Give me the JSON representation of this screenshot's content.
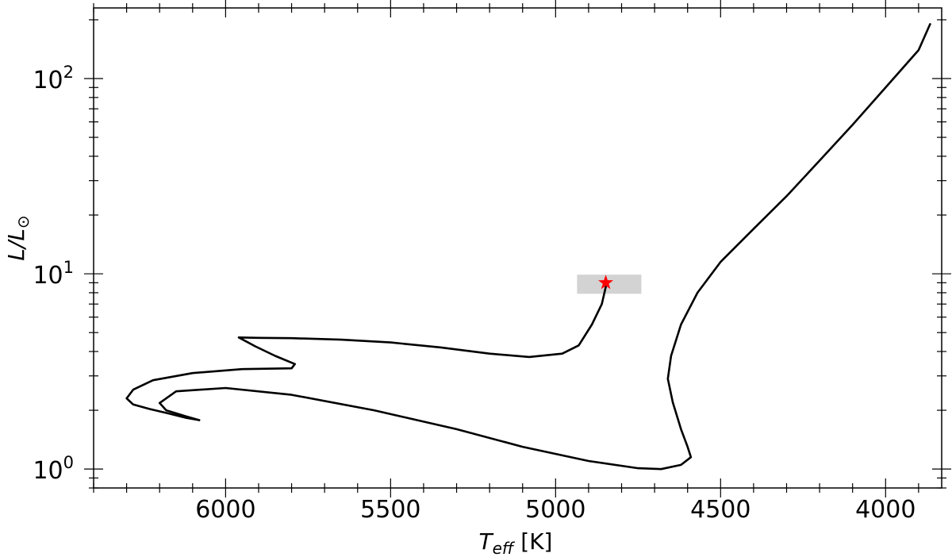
{
  "chart_data": {
    "type": "line",
    "xlabel": {
      "main": "T",
      "sub": "eff",
      "unit": " [K]"
    },
    "ylabel": {
      "main": "L/L",
      "sub": "⊙"
    },
    "x_axis": {
      "min": 3830,
      "max": 6400,
      "reversed": true,
      "major_ticks": [
        6000,
        5500,
        5000,
        4500,
        4000
      ],
      "major_labels": [
        "6000",
        "5500",
        "5000",
        "4500",
        "4000"
      ],
      "minor_step": 100
    },
    "y_axis": {
      "scale": "log",
      "min": 0.8,
      "max": 230,
      "major_ticks": [
        1,
        10,
        100
      ],
      "major_labels": [
        {
          "base": "10",
          "exp": "0"
        },
        {
          "base": "10",
          "exp": "1"
        },
        {
          "base": "10",
          "exp": "2"
        }
      ]
    },
    "grid": false,
    "series": [
      {
        "color": "#000000",
        "points": [
          [
            6080,
            1.78
          ],
          [
            6120,
            1.83
          ],
          [
            6170,
            1.92
          ],
          [
            6230,
            2.03
          ],
          [
            6280,
            2.14
          ],
          [
            6300,
            2.3
          ],
          [
            6280,
            2.55
          ],
          [
            6220,
            2.85
          ],
          [
            6100,
            3.1
          ],
          [
            5950,
            3.25
          ],
          [
            5800,
            3.28
          ],
          [
            5790,
            3.45
          ],
          [
            5850,
            3.8
          ],
          [
            5910,
            4.25
          ],
          [
            5960,
            4.72
          ],
          [
            5900,
            4.7
          ],
          [
            5800,
            4.68
          ],
          [
            5650,
            4.6
          ],
          [
            5500,
            4.45
          ],
          [
            5350,
            4.2
          ],
          [
            5200,
            3.9
          ],
          [
            5080,
            3.75
          ],
          [
            4980,
            3.9
          ],
          [
            4930,
            4.3
          ],
          [
            4890,
            5.5
          ],
          [
            4860,
            7.0
          ],
          [
            4845,
            9.0
          ]
        ]
      },
      {
        "color": "#000000",
        "points": [
          [
            6080,
            1.78
          ],
          [
            6120,
            1.86
          ],
          [
            6180,
            2.0
          ],
          [
            6200,
            2.18
          ],
          [
            6150,
            2.5
          ],
          [
            6000,
            2.6
          ],
          [
            5800,
            2.4
          ],
          [
            5550,
            2.0
          ],
          [
            5300,
            1.6
          ],
          [
            5100,
            1.3
          ],
          [
            4900,
            1.1
          ],
          [
            4750,
            1.01
          ],
          [
            4680,
            1.0
          ],
          [
            4620,
            1.05
          ],
          [
            4590,
            1.15
          ],
          [
            4600,
            1.3
          ],
          [
            4620,
            1.6
          ],
          [
            4645,
            2.2
          ],
          [
            4660,
            2.9
          ],
          [
            4650,
            3.8
          ],
          [
            4620,
            5.5
          ],
          [
            4570,
            8.0
          ],
          [
            4500,
            11.5
          ],
          [
            4400,
            17.0
          ],
          [
            4300,
            25.0
          ],
          [
            4200,
            38.0
          ],
          [
            4100,
            58.0
          ],
          [
            4000,
            90.0
          ],
          [
            3900,
            140.0
          ],
          [
            3865,
            190.0
          ]
        ]
      }
    ],
    "highlight_box": {
      "x_range": [
        4740,
        4935
      ],
      "y_range": [
        7.9,
        9.9
      ],
      "color": "#d3d3d3"
    },
    "marker": {
      "x": 4848,
      "y": 9.0,
      "shape": "star",
      "color": "#ff0000"
    }
  }
}
